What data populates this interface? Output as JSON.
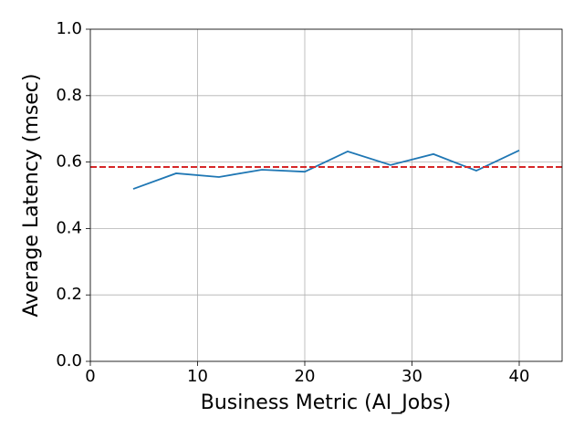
{
  "chart_data": {
    "type": "line",
    "x_label": "Business Metric (AI_Jobs)",
    "y_label": "Average Latency (msec)",
    "x": [
      4,
      8,
      12,
      16,
      20,
      24,
      28,
      32,
      36,
      40
    ],
    "values": [
      0.519,
      0.566,
      0.555,
      0.577,
      0.571,
      0.632,
      0.591,
      0.624,
      0.574,
      0.635
    ],
    "color": "#1f77b4",
    "reference_line": {
      "value": 0.585,
      "color": "#d62728",
      "style": "dashed"
    },
    "xlim": [
      0,
      44
    ],
    "xticks": [
      0,
      10,
      20,
      30,
      40
    ],
    "ylim": [
      0,
      1
    ],
    "yticks": [
      {
        "value": 0,
        "label": "0.0"
      },
      0.2,
      0.4,
      0.6,
      0.8,
      {
        "value": 1,
        "label": "1.0"
      }
    ],
    "grid": true
  }
}
